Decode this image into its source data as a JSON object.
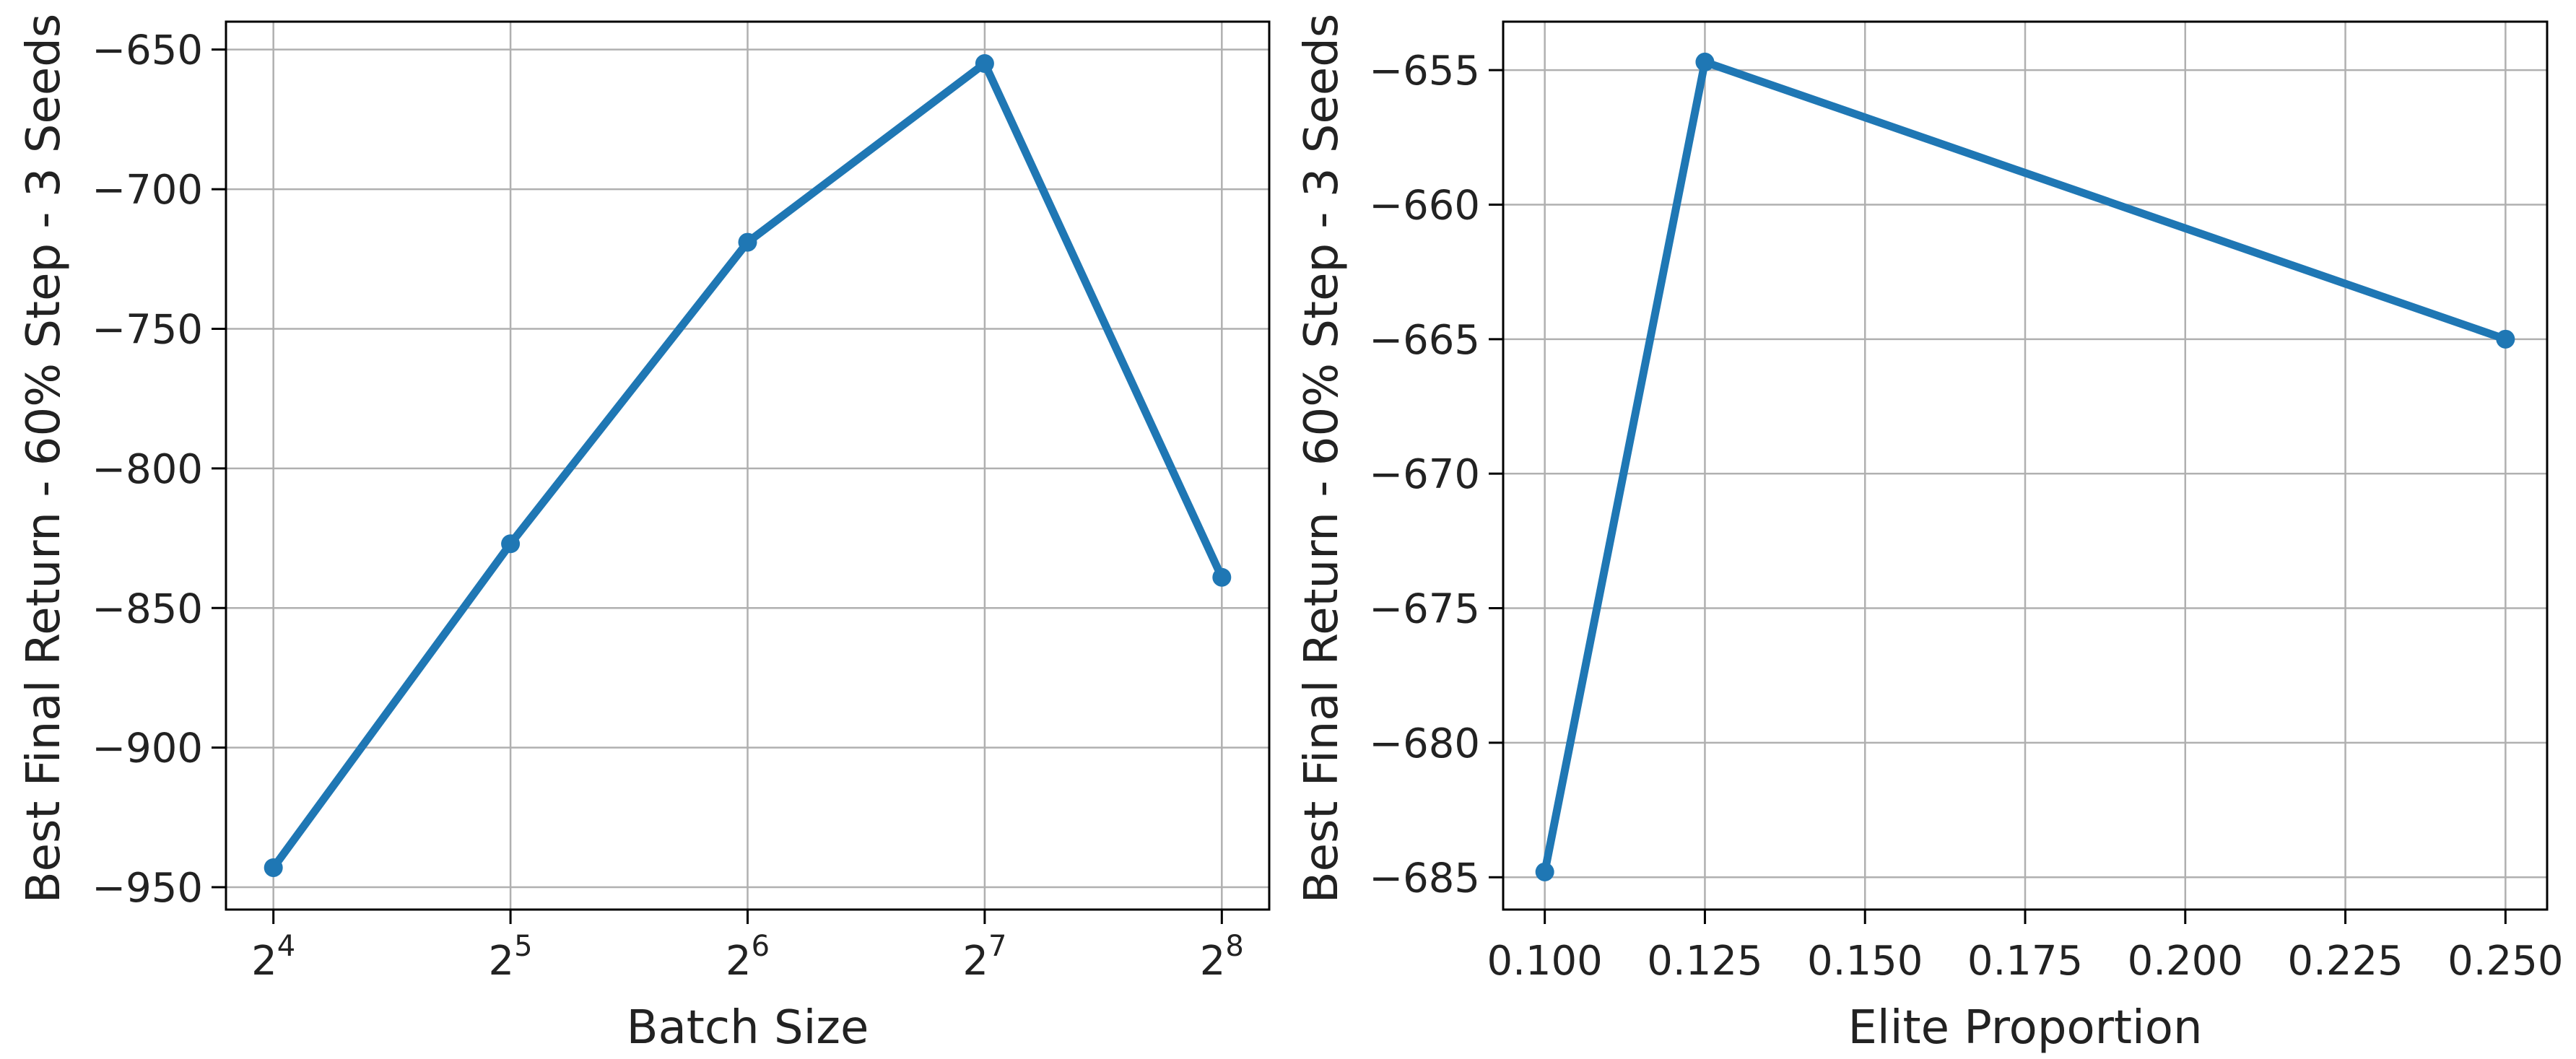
{
  "chart_data": [
    {
      "type": "line",
      "xscale": "log2",
      "x": [
        16,
        32,
        64,
        128,
        256
      ],
      "x_tick_labels": [
        {
          "base": "2",
          "exp": "4"
        },
        {
          "base": "2",
          "exp": "5"
        },
        {
          "base": "2",
          "exp": "6"
        },
        {
          "base": "2",
          "exp": "7"
        },
        {
          "base": "2",
          "exp": "8"
        }
      ],
      "series": [
        {
          "values": [
            -943,
            -827,
            -719,
            -655,
            -839
          ]
        }
      ],
      "xlabel": "Batch Size",
      "ylabel": "Best Final Return - 60% Step - 3 Seeds",
      "yticks": [
        -650,
        -700,
        -750,
        -800,
        -850,
        -900,
        -950
      ],
      "ylim": [
        -958,
        -640
      ],
      "grid": true,
      "color": "#1f77b4"
    },
    {
      "type": "line",
      "xscale": "linear",
      "x": [
        0.1,
        0.125,
        0.25
      ],
      "xticks": [
        "0.100",
        "0.125",
        "0.150",
        "0.175",
        "0.200",
        "0.225",
        "0.250"
      ],
      "series": [
        {
          "values": [
            -684.8,
            -654.7,
            -665.0
          ]
        }
      ],
      "xlabel": "Elite Proportion",
      "ylabel": "Best Final Return - 60% Step - 3 Seeds",
      "yticks": [
        -655,
        -660,
        -665,
        -670,
        -675,
        -680,
        -685
      ],
      "ylim": [
        -686.2,
        -653.2
      ],
      "xlim": [
        0.0935,
        0.2565
      ],
      "grid": true,
      "color": "#1f77b4"
    }
  ]
}
